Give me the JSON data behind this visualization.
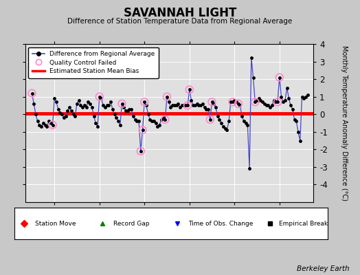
{
  "title": "SAVANNAH LIGHT",
  "subtitle": "Difference of Station Temperature Data from Regional Average",
  "ylabel": "Monthly Temperature Anomaly Difference (°C)",
  "xlabel_note": "Berkeley Earth",
  "ylim": [
    -5,
    4
  ],
  "xlim": [
    1984.7,
    1997.5
  ],
  "xticks": [
    1986,
    1988,
    1990,
    1992,
    1994,
    1996
  ],
  "yticks": [
    -4,
    -3,
    -2,
    -1,
    0,
    1,
    2,
    3,
    4
  ],
  "bias_value": 0.05,
  "background_color": "#c8c8c8",
  "plot_bg_color": "#e0e0e0",
  "line_color": "#4444cc",
  "marker_color": "#000000",
  "bias_color": "#ff0000",
  "qc_color": "#ff88cc",
  "years_months": [
    1985.0,
    1985.083,
    1985.167,
    1985.25,
    1985.333,
    1985.417,
    1985.5,
    1985.583,
    1985.667,
    1985.75,
    1985.833,
    1985.917,
    1986.0,
    1986.083,
    1986.167,
    1986.25,
    1986.333,
    1986.417,
    1986.5,
    1986.583,
    1986.667,
    1986.75,
    1986.833,
    1986.917,
    1987.0,
    1987.083,
    1987.167,
    1987.25,
    1987.333,
    1987.417,
    1987.5,
    1987.583,
    1987.667,
    1987.75,
    1987.833,
    1987.917,
    1988.0,
    1988.083,
    1988.167,
    1988.25,
    1988.333,
    1988.417,
    1988.5,
    1988.583,
    1988.667,
    1988.75,
    1988.833,
    1988.917,
    1989.0,
    1989.083,
    1989.167,
    1989.25,
    1989.333,
    1989.417,
    1989.5,
    1989.583,
    1989.667,
    1989.75,
    1989.833,
    1989.917,
    1990.0,
    1990.083,
    1990.167,
    1990.25,
    1990.333,
    1990.417,
    1990.5,
    1990.583,
    1990.667,
    1990.75,
    1990.833,
    1990.917,
    1991.0,
    1991.083,
    1991.167,
    1991.25,
    1991.333,
    1991.417,
    1991.5,
    1991.583,
    1991.667,
    1991.75,
    1991.833,
    1991.917,
    1992.0,
    1992.083,
    1992.167,
    1992.25,
    1992.333,
    1992.417,
    1992.5,
    1992.583,
    1992.667,
    1992.75,
    1992.833,
    1992.917,
    1993.0,
    1993.083,
    1993.167,
    1993.25,
    1993.333,
    1993.417,
    1993.5,
    1993.583,
    1993.667,
    1993.75,
    1993.833,
    1993.917,
    1994.0,
    1994.083,
    1994.167,
    1994.25,
    1994.333,
    1994.417,
    1994.5,
    1994.583,
    1994.667,
    1994.75,
    1994.833,
    1994.917,
    1995.0,
    1995.083,
    1995.167,
    1995.25,
    1995.333,
    1995.417,
    1995.5,
    1995.583,
    1995.667,
    1995.75,
    1995.833,
    1995.917,
    1996.0,
    1996.083,
    1996.167,
    1996.25,
    1996.333,
    1996.417,
    1996.5,
    1996.583,
    1996.667,
    1996.75,
    1996.833,
    1996.917,
    1997.0,
    1997.083,
    1997.167,
    1997.25
  ],
  "values": [
    1.2,
    0.6,
    0.0,
    -0.4,
    -0.6,
    -0.7,
    -0.5,
    -0.6,
    -0.7,
    -0.4,
    -0.5,
    -0.6,
    0.9,
    0.7,
    0.3,
    0.1,
    0.0,
    -0.2,
    -0.1,
    0.2,
    0.4,
    0.2,
    0.0,
    -0.1,
    0.6,
    0.8,
    0.5,
    0.4,
    0.5,
    0.4,
    0.7,
    0.6,
    0.4,
    -0.1,
    -0.5,
    -0.7,
    1.0,
    0.9,
    0.5,
    0.4,
    0.5,
    0.5,
    0.7,
    0.3,
    0.0,
    -0.2,
    -0.4,
    -0.6,
    0.6,
    0.4,
    0.2,
    0.2,
    0.3,
    0.3,
    -0.1,
    -0.3,
    -0.4,
    -0.4,
    -2.1,
    -0.9,
    0.7,
    0.5,
    0.0,
    -0.3,
    -0.4,
    -0.4,
    -0.5,
    -0.7,
    -0.6,
    -0.3,
    -0.2,
    -0.3,
    1.0,
    0.7,
    0.4,
    0.5,
    0.5,
    0.5,
    0.6,
    0.4,
    0.5,
    0.5,
    0.5,
    0.5,
    1.4,
    0.8,
    0.5,
    0.5,
    0.6,
    0.5,
    0.5,
    0.6,
    0.4,
    0.3,
    0.3,
    -0.3,
    0.7,
    0.6,
    0.4,
    -0.1,
    -0.3,
    -0.5,
    -0.7,
    -0.8,
    -0.9,
    -0.4,
    0.7,
    0.7,
    0.8,
    0.7,
    0.6,
    0.5,
    -0.1,
    -0.4,
    -0.5,
    -0.6,
    -3.1,
    3.2,
    2.1,
    0.7,
    0.8,
    0.9,
    0.8,
    0.7,
    0.6,
    0.5,
    0.5,
    0.4,
    0.5,
    0.8,
    0.7,
    0.7,
    2.1,
    1.0,
    0.7,
    0.8,
    1.5,
    0.9,
    0.5,
    0.3,
    -0.3,
    -0.4,
    -1.0,
    -1.5,
    1.0,
    0.9,
    1.0,
    1.1
  ],
  "qc_failed_indices": [
    0,
    11,
    36,
    48,
    58,
    59,
    60,
    71,
    72,
    83,
    84,
    95,
    96,
    107,
    110,
    119,
    131,
    132
  ]
}
